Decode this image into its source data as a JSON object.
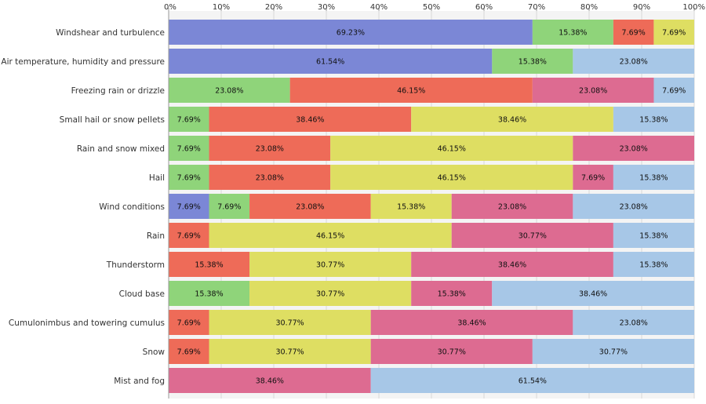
{
  "chart_data": {
    "type": "bar",
    "orientation": "horizontal",
    "stacked": "percent",
    "title": "",
    "xlabel": "",
    "ylabel": "",
    "xlim": [
      0,
      100
    ],
    "x_ticks": [
      "0%",
      "10%",
      "20%",
      "30%",
      "40%",
      "50%",
      "60%",
      "70%",
      "80%",
      "90%",
      "100%"
    ],
    "grid": true,
    "legend": "none",
    "categories": [
      "Windshear and turbulence",
      "Air temperature, humidity and pressure",
      "Freezing rain or drizzle",
      "Small hail or snow pellets",
      "Rain and snow mixed",
      "Hail",
      "Wind conditions",
      "Rain",
      "Thunderstorm",
      "Cloud base",
      "Cumulonimbus and towering cumulus",
      "Snow",
      "Mist and fog"
    ],
    "series_colors": [
      "#7b87d6",
      "#8fd47a",
      "#ee6b58",
      "#dede62",
      "#dd6b91",
      "#a7c7e7"
    ],
    "bars": [
      [
        {
          "s": 0,
          "v": 69.23,
          "label": "69.23%"
        },
        {
          "s": 1,
          "v": 15.38,
          "label": "15.38%"
        },
        {
          "s": 2,
          "v": 7.69,
          "label": "7.69%"
        },
        {
          "s": 3,
          "v": 7.69,
          "label": "7.69%"
        }
      ],
      [
        {
          "s": 0,
          "v": 61.54,
          "label": "61.54%"
        },
        {
          "s": 1,
          "v": 15.38,
          "label": "15.38%"
        },
        {
          "s": 5,
          "v": 23.08,
          "label": "23.08%"
        }
      ],
      [
        {
          "s": 1,
          "v": 23.08,
          "label": "23.08%"
        },
        {
          "s": 2,
          "v": 46.15,
          "label": "46.15%"
        },
        {
          "s": 4,
          "v": 23.08,
          "label": "23.08%"
        },
        {
          "s": 5,
          "v": 7.69,
          "label": "7.69%"
        }
      ],
      [
        {
          "s": 1,
          "v": 7.69,
          "label": "7.69%"
        },
        {
          "s": 2,
          "v": 38.46,
          "label": "38.46%"
        },
        {
          "s": 3,
          "v": 38.46,
          "label": "38.46%"
        },
        {
          "s": 5,
          "v": 15.38,
          "label": "15.38%"
        }
      ],
      [
        {
          "s": 1,
          "v": 7.69,
          "label": "7.69%"
        },
        {
          "s": 2,
          "v": 23.08,
          "label": "23.08%"
        },
        {
          "s": 3,
          "v": 46.15,
          "label": "46.15%"
        },
        {
          "s": 4,
          "v": 23.08,
          "label": "23.08%"
        }
      ],
      [
        {
          "s": 1,
          "v": 7.69,
          "label": "7.69%"
        },
        {
          "s": 2,
          "v": 23.08,
          "label": "23.08%"
        },
        {
          "s": 3,
          "v": 46.15,
          "label": "46.15%"
        },
        {
          "s": 4,
          "v": 7.69,
          "label": "7.69%"
        },
        {
          "s": 5,
          "v": 15.38,
          "label": "15.38%"
        }
      ],
      [
        {
          "s": 0,
          "v": 7.69,
          "label": "7.69%"
        },
        {
          "s": 1,
          "v": 7.69,
          "label": "7.69%"
        },
        {
          "s": 2,
          "v": 23.08,
          "label": "23.08%"
        },
        {
          "s": 3,
          "v": 15.38,
          "label": "15.38%"
        },
        {
          "s": 4,
          "v": 23.08,
          "label": "23.08%"
        },
        {
          "s": 5,
          "v": 23.08,
          "label": "23.08%"
        }
      ],
      [
        {
          "s": 2,
          "v": 7.69,
          "label": "7.69%"
        },
        {
          "s": 3,
          "v": 46.15,
          "label": "46.15%"
        },
        {
          "s": 4,
          "v": 30.77,
          "label": "30.77%"
        },
        {
          "s": 5,
          "v": 15.38,
          "label": "15.38%"
        }
      ],
      [
        {
          "s": 2,
          "v": 15.38,
          "label": "15.38%"
        },
        {
          "s": 3,
          "v": 30.77,
          "label": "30.77%"
        },
        {
          "s": 4,
          "v": 38.46,
          "label": "38.46%"
        },
        {
          "s": 5,
          "v": 15.38,
          "label": "15.38%"
        }
      ],
      [
        {
          "s": 1,
          "v": 15.38,
          "label": "15.38%"
        },
        {
          "s": 3,
          "v": 30.77,
          "label": "30.77%"
        },
        {
          "s": 4,
          "v": 15.38,
          "label": "15.38%"
        },
        {
          "s": 5,
          "v": 38.46,
          "label": "38.46%"
        }
      ],
      [
        {
          "s": 2,
          "v": 7.69,
          "label": "7.69%"
        },
        {
          "s": 3,
          "v": 30.77,
          "label": "30.77%"
        },
        {
          "s": 4,
          "v": 38.46,
          "label": "38.46%"
        },
        {
          "s": 5,
          "v": 23.08,
          "label": "23.08%"
        }
      ],
      [
        {
          "s": 2,
          "v": 7.69,
          "label": "7.69%"
        },
        {
          "s": 3,
          "v": 30.77,
          "label": "30.77%"
        },
        {
          "s": 4,
          "v": 30.77,
          "label": "30.77%"
        },
        {
          "s": 5,
          "v": 30.77,
          "label": "30.77%"
        }
      ],
      [
        {
          "s": 4,
          "v": 38.46,
          "label": "38.46%"
        },
        {
          "s": 5,
          "v": 61.54,
          "label": "61.54%"
        }
      ]
    ]
  }
}
